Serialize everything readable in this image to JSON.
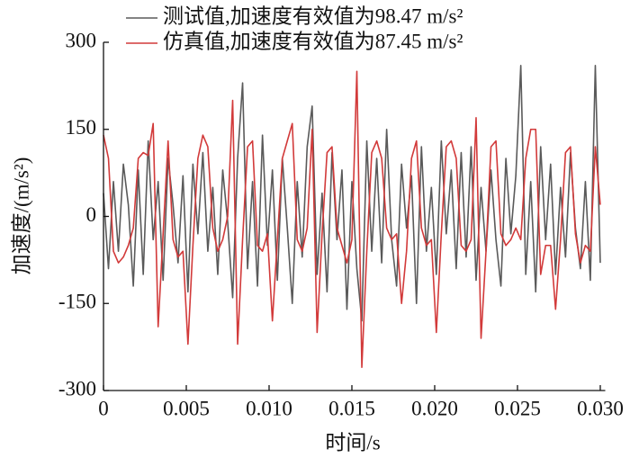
{
  "chart_data": {
    "type": "line",
    "xlabel": "时间/s",
    "ylabel": "加速度/(m/s²)",
    "xlim": [
      0,
      0.0303
    ],
    "ylim": [
      -300,
      300
    ],
    "xticks": [
      0,
      0.005,
      {
        "value": 0.01,
        "label": "0.010"
      },
      0.015,
      {
        "value": 0.02,
        "label": "0.020"
      },
      0.025,
      {
        "value": 0.03,
        "label": "0.030"
      }
    ],
    "yticks": [
      -300,
      -150,
      0,
      150,
      300
    ],
    "legend": "upper center",
    "x": [
      0,
      0.0003,
      0.0006,
      0.0009,
      0.0012,
      0.0015,
      0.0018,
      0.0021,
      0.0024,
      0.0027,
      0.003,
      0.0033,
      0.0036,
      0.0039,
      0.0042,
      0.0045,
      0.0048,
      0.0051,
      0.0054,
      0.0057,
      0.006,
      0.0063,
      0.0066,
      0.0069,
      0.0072,
      0.0075,
      0.0078,
      0.0081,
      0.0084,
      0.0087,
      0.009,
      0.0093,
      0.0096,
      0.0099,
      0.0102,
      0.0105,
      0.0108,
      0.0111,
      0.0114,
      0.0117,
      0.012,
      0.0123,
      0.0126,
      0.0129,
      0.0132,
      0.0135,
      0.0138,
      0.0141,
      0.0144,
      0.0147,
      0.015,
      0.0153,
      0.0156,
      0.0159,
      0.0162,
      0.0165,
      0.0168,
      0.0171,
      0.0174,
      0.0177,
      0.018,
      0.0183,
      0.0186,
      0.0189,
      0.0192,
      0.0195,
      0.0198,
      0.0201,
      0.0204,
      0.0207,
      0.021,
      0.0213,
      0.0216,
      0.0219,
      0.0222,
      0.0225,
      0.0228,
      0.0231,
      0.0234,
      0.0237,
      0.024,
      0.0243,
      0.0246,
      0.0249,
      0.0252,
      0.0255,
      0.0258,
      0.0261,
      0.0264,
      0.0267,
      0.027,
      0.0273,
      0.0276,
      0.0279,
      0.0282,
      0.0285,
      0.0288,
      0.0291,
      0.0294,
      0.0297,
      0.03
    ],
    "series": [
      {
        "name": "测试值,加速度有效值为98.47 m/s²",
        "color": "#5a5a5a",
        "values": [
          40,
          -90,
          60,
          -60,
          90,
          20,
          -120,
          80,
          -100,
          130,
          -40,
          60,
          -110,
          100,
          20,
          -80,
          70,
          -130,
          90,
          -30,
          110,
          -60,
          50,
          -100,
          80,
          -10,
          -140,
          100,
          230,
          -90,
          60,
          -120,
          140,
          -50,
          80,
          -110,
          100,
          -20,
          -150,
          60,
          -70,
          120,
          190,
          -100,
          40,
          -130,
          110,
          -40,
          80,
          -160,
          60,
          -90,
          -180,
          130,
          -60,
          100,
          -80,
          150,
          -40,
          -120,
          90,
          -20,
          70,
          -150,
          120,
          -60,
          50,
          -100,
          130,
          -30,
          80,
          -90,
          110,
          -70,
          120,
          -110,
          50,
          -60,
          80,
          -40,
          -120,
          100,
          -30,
          70,
          260,
          -100,
          60,
          -130,
          120,
          -40,
          90,
          -100,
          50,
          -70,
          110,
          -20,
          -90,
          60,
          -110,
          260,
          -80
        ]
      },
      {
        "name": "仿真值,加速度有效值为87.45 m/s²",
        "color": "#d23a3a",
        "values": [
          140,
          100,
          -60,
          -80,
          -70,
          -50,
          -20,
          100,
          110,
          105,
          160,
          -190,
          -30,
          130,
          -40,
          -70,
          -60,
          -220,
          -50,
          100,
          140,
          120,
          -20,
          -60,
          -40,
          0,
          200,
          -220,
          -40,
          120,
          130,
          -50,
          -60,
          -30,
          -180,
          -40,
          100,
          130,
          160,
          -40,
          -60,
          -20,
          150,
          -200,
          -30,
          110,
          120,
          -20,
          -50,
          -80,
          -40,
          250,
          -260,
          -60,
          110,
          130,
          100,
          -20,
          -40,
          -30,
          -150,
          -60,
          100,
          130,
          -20,
          -50,
          -40,
          -200,
          -30,
          120,
          130,
          100,
          -50,
          -60,
          -40,
          170,
          -210,
          -60,
          120,
          130,
          -30,
          -50,
          -40,
          -20,
          -40,
          100,
          150,
          150,
          -100,
          -50,
          -50,
          -160,
          -40,
          110,
          120,
          -30,
          -80,
          -50,
          -60,
          120,
          20
        ]
      }
    ]
  }
}
